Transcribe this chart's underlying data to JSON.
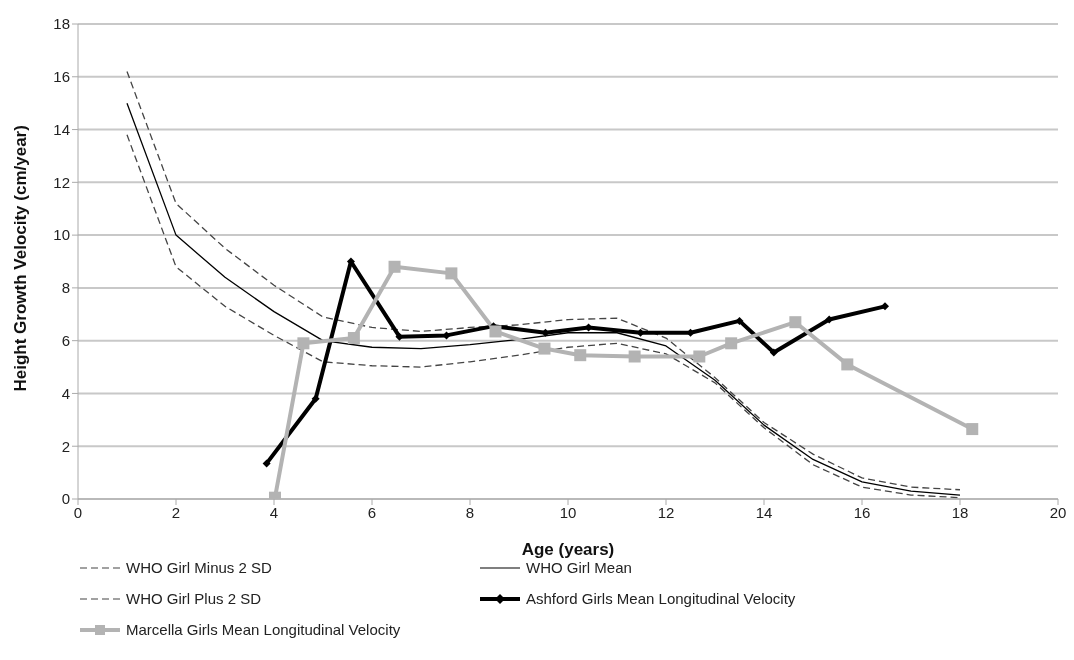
{
  "chart_data": {
    "type": "line",
    "xlabel": "Age (years)",
    "ylabel": "Height Growth Velocity (cm/year)",
    "xlim": [
      0,
      20
    ],
    "xticks": [
      0,
      2,
      4,
      6,
      8,
      10,
      12,
      14,
      16,
      18,
      20
    ],
    "ylim": [
      0,
      18
    ],
    "yticks": [
      0,
      2,
      4,
      6,
      8,
      10,
      12,
      14,
      16,
      18
    ],
    "grid": "y",
    "legend": "bottom",
    "series": [
      {
        "name": "WHO Girl Minus 2 SD",
        "color": "#444444",
        "line_style": "dashed",
        "marker": "none",
        "x": [
          1,
          2,
          3,
          4,
          5,
          6,
          7,
          8,
          9,
          10,
          11,
          12,
          13,
          14,
          15,
          16,
          17,
          18
        ],
        "values": [
          13.8,
          8.8,
          7.3,
          6.2,
          5.2,
          5.05,
          5.0,
          5.2,
          5.45,
          5.75,
          5.9,
          5.5,
          4.4,
          2.7,
          1.3,
          0.45,
          0.15,
          0.05
        ]
      },
      {
        "name": "WHO Girl Mean",
        "color": "#000000",
        "line_style": "solid",
        "marker": "none",
        "x": [
          1,
          2,
          3,
          4,
          5,
          6,
          7,
          8,
          9,
          10,
          11,
          12,
          13,
          14,
          15,
          16,
          17,
          18
        ],
        "values": [
          15,
          10,
          8.4,
          7.1,
          6.0,
          5.75,
          5.7,
          5.85,
          6.05,
          6.3,
          6.3,
          5.8,
          4.5,
          2.8,
          1.5,
          0.65,
          0.3,
          0.15
        ]
      },
      {
        "name": "WHO Girl Plus 2 SD",
        "color": "#444444",
        "line_style": "dashed",
        "marker": "none",
        "x": [
          1,
          2,
          3,
          4,
          5,
          6,
          7,
          8,
          9,
          10,
          11,
          12,
          13,
          14,
          15,
          16,
          17,
          18
        ],
        "values": [
          16.2,
          11.2,
          9.5,
          8.1,
          6.9,
          6.5,
          6.35,
          6.5,
          6.6,
          6.8,
          6.85,
          6.1,
          4.6,
          2.9,
          1.7,
          0.8,
          0.45,
          0.35
        ]
      },
      {
        "name": "Ashford Girls Mean Longitudinal Velocity",
        "color": "#000000",
        "line_style": "solid",
        "marker": "diamond",
        "x": [
          3.85,
          4.85,
          5.57,
          6.56,
          7.52,
          8.48,
          9.54,
          10.42,
          11.48,
          12.5,
          13.5,
          14.2,
          15.33,
          16.47
        ],
        "values": [
          1.35,
          3.8,
          9.0,
          6.15,
          6.2,
          6.55,
          6.3,
          6.5,
          6.3,
          6.3,
          6.75,
          5.55,
          6.8,
          7.3
        ]
      },
      {
        "name": "Marcella Girls Mean Longitudinal Velocity",
        "color": "#b3b3b3",
        "line_style": "solid",
        "marker": "square",
        "x": [
          4.02,
          4.6,
          5.63,
          6.46,
          7.62,
          8.52,
          9.52,
          10.25,
          11.36,
          12.68,
          13.33,
          14.64,
          15.7,
          18.25
        ],
        "values": [
          0.05,
          5.9,
          6.1,
          8.8,
          8.55,
          6.35,
          5.7,
          5.45,
          5.4,
          5.4,
          5.9,
          6.7,
          5.1,
          2.65
        ]
      }
    ]
  }
}
